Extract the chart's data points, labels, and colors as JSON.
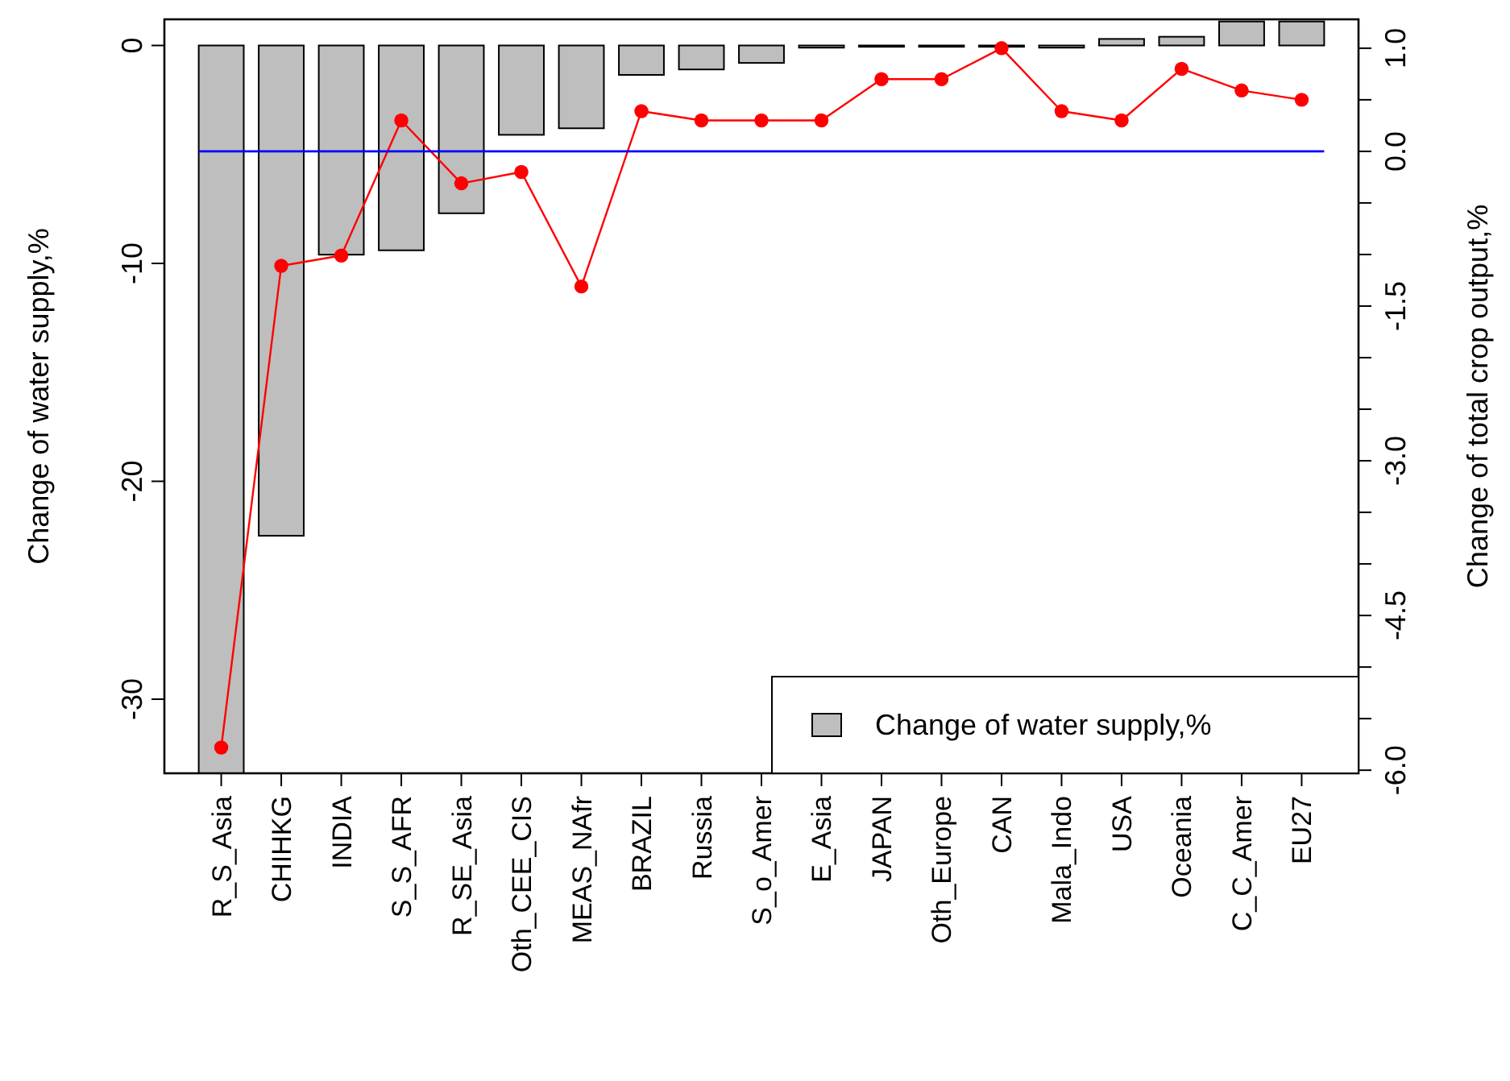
{
  "chart_data": {
    "type": "bar",
    "ylabel": "Change of water supply,%",
    "y2label": "Change of total crop output,%",
    "categories": [
      "R_S_Asia",
      "CHIHKG",
      "INDIA",
      "S_S_AFR",
      "R_SE_Asia",
      "Oth_CEE_CIS",
      "MEAS_NAfr",
      "BRAZIL",
      "Russia",
      "S_o_Amer",
      "E_Asia",
      "JAPAN",
      "Oth_Europe",
      "CAN",
      "Mala_Indo",
      "USA",
      "Oceania",
      "C_C_Amer",
      "EU27"
    ],
    "series": [
      {
        "name": "Change of water supply,%",
        "color": "#bebebe",
        "values": [
          -33.4,
          -22.5,
          -9.6,
          -9.4,
          -7.7,
          -4.1,
          -3.8,
          -1.35,
          -1.1,
          -0.8,
          -0.1,
          -0.05,
          0,
          0,
          -0.1,
          0.3,
          0.4,
          1.1,
          1.1
        ]
      },
      {
        "type": "line",
        "axis": "y2",
        "color": "#ff0000",
        "values": [
          -5.78,
          -1.11,
          -1.01,
          0.3,
          -0.31,
          -0.2,
          -1.31,
          0.39,
          0.3,
          0.3,
          0.3,
          0.7,
          0.7,
          1.0,
          0.39,
          0.3,
          0.8,
          0.59,
          0.5
        ]
      }
    ],
    "ylim": [
      -33.4,
      1.2
    ],
    "yticks": [
      0,
      -10,
      -20,
      -30
    ],
    "y2lim": [
      -6.03,
      1.28
    ],
    "y2ticks": [
      {
        "value": 1.0,
        "label": "1.0"
      },
      {
        "value": 0.5,
        "label": null
      },
      {
        "value": 0.0,
        "label": "0.0"
      },
      {
        "value": -0.5,
        "label": null
      },
      {
        "value": -1.0,
        "label": null
      },
      -1.5,
      {
        "value": -2.0,
        "label": null
      },
      {
        "value": -2.5,
        "label": null
      },
      {
        "value": -3.0,
        "label": "-3.0"
      },
      {
        "value": -3.5,
        "label": null
      },
      {
        "value": -4.0,
        "label": null
      },
      -4.5,
      {
        "value": -5.0,
        "label": null
      },
      {
        "value": -5.5,
        "label": null
      },
      {
        "value": -6.0,
        "label": "-6.0"
      }
    ],
    "ref_lines": [
      {
        "axis": "y2",
        "value": 0,
        "color": "#0000ff"
      }
    ],
    "marker": "circle",
    "legend": "bottom right",
    "grid": false
  }
}
